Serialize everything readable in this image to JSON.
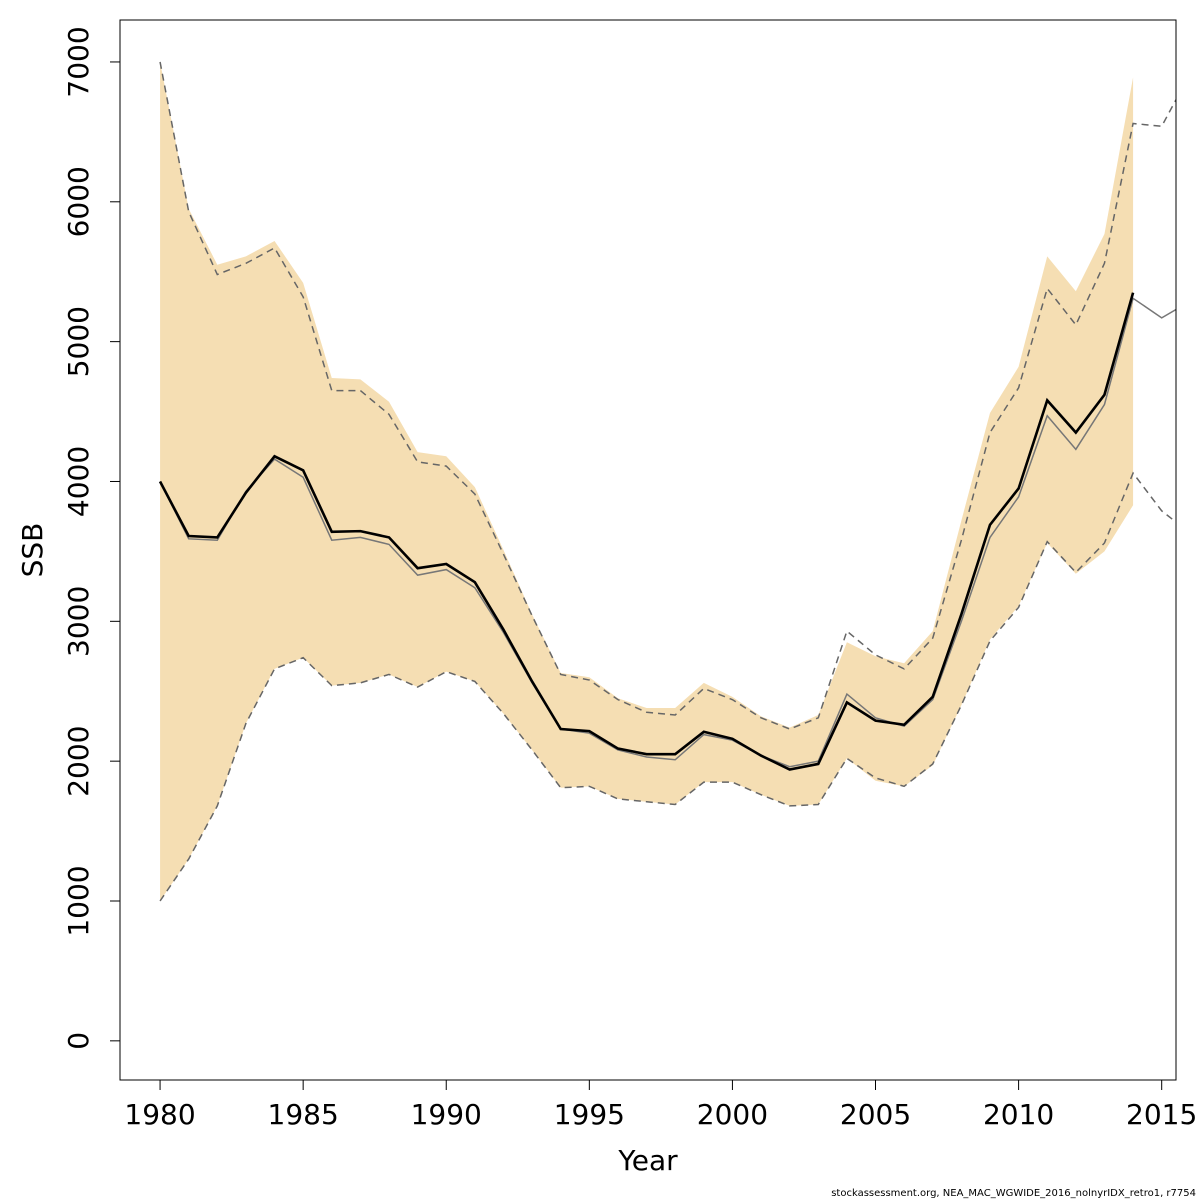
{
  "chart_data": {
    "type": "line",
    "xlabel": "Year",
    "ylabel": "SSB",
    "xlim": [
      1978.6,
      2015.5
    ],
    "ylim": [
      -280,
      7300
    ],
    "xticks": [
      1980,
      1985,
      1990,
      1995,
      2000,
      2005,
      2010,
      2015
    ],
    "xtick_labels": [
      "1980",
      "1985",
      "1990",
      "1995",
      "2000",
      "2005",
      "2010",
      "2015"
    ],
    "yticks": [
      0,
      1000,
      2000,
      3000,
      4000,
      5000,
      6000,
      7000
    ],
    "ytick_labels": [
      "0",
      "1000",
      "2000",
      "3000",
      "4000",
      "5000",
      "6000",
      "7000"
    ],
    "grid": false,
    "legend": "none",
    "band": {
      "color": "#f5deb3",
      "x": [
        1980,
        1981,
        1982,
        1983,
        1984,
        1985,
        1986,
        1987,
        1988,
        1989,
        1990,
        1991,
        1992,
        1993,
        1994,
        1995,
        1996,
        1997,
        1998,
        1999,
        2000,
        2001,
        2002,
        2003,
        2004,
        2005,
        2006,
        2007,
        2008,
        2009,
        2010,
        2011,
        2012,
        2013,
        2014
      ],
      "lower": [
        1000,
        1300,
        1680,
        2270,
        2660,
        2740,
        2540,
        2560,
        2620,
        2530,
        2640,
        2570,
        2340,
        2080,
        1810,
        1820,
        1730,
        1710,
        1690,
        1850,
        1850,
        1760,
        1680,
        1690,
        2020,
        1860,
        1820,
        1970,
        2400,
        2870,
        3110,
        3560,
        3340,
        3500,
        3830
      ],
      "upper": [
        7000,
        5950,
        5550,
        5610,
        5720,
        5420,
        4740,
        4730,
        4570,
        4210,
        4180,
        3960,
        3510,
        3050,
        2630,
        2600,
        2450,
        2380,
        2380,
        2560,
        2460,
        2320,
        2240,
        2330,
        2850,
        2750,
        2700,
        2930,
        3720,
        4490,
        4820,
        5610,
        5360,
        5770,
        6890
      ]
    },
    "series": [
      {
        "color": "#000000",
        "style": "solid",
        "x": [
          1980,
          1981,
          1982,
          1983,
          1984,
          1985,
          1986,
          1987,
          1988,
          1989,
          1990,
          1991,
          1992,
          1993,
          1994,
          1995,
          1996,
          1997,
          1998,
          1999,
          2000,
          2001,
          2002,
          2003,
          2004,
          2005,
          2006,
          2007,
          2008,
          2009,
          2010,
          2011,
          2012,
          2013,
          2014
        ],
        "values": [
          4000,
          3610,
          3600,
          3920,
          4180,
          4080,
          3640,
          3645,
          3600,
          3380,
          3410,
          3280,
          2940,
          2570,
          2230,
          2215,
          2090,
          2050,
          2050,
          2210,
          2160,
          2040,
          1940,
          1980,
          2420,
          2290,
          2260,
          2460,
          3050,
          3690,
          3950,
          4580,
          4350,
          4620,
          5350
        ]
      },
      {
        "color": "#777777",
        "style": "solid",
        "x": [
          1980,
          1981,
          1982,
          1983,
          1984,
          1985,
          1986,
          1987,
          1988,
          1989,
          1990,
          1991,
          1992,
          1993,
          1994,
          1995,
          1996,
          1997,
          1998,
          1999,
          2000,
          2001,
          2002,
          2003,
          2004,
          2005,
          2006,
          2007,
          2008,
          2009,
          2010,
          2011,
          2012,
          2013,
          2014,
          2015,
          2015.5
        ],
        "values": [
          4000,
          3590,
          3580,
          3930,
          4160,
          4030,
          3580,
          3600,
          3550,
          3330,
          3370,
          3240,
          2920,
          2560,
          2230,
          2200,
          2080,
          2030,
          2010,
          2190,
          2150,
          2040,
          1960,
          2000,
          2480,
          2310,
          2250,
          2440,
          3000,
          3600,
          3890,
          4470,
          4230,
          4550,
          5310,
          5170,
          5230
        ]
      },
      {
        "color": "#666666",
        "style": "dashed",
        "x": [
          1980,
          1981,
          1982,
          1983,
          1984,
          1985,
          1986,
          1987,
          1988,
          1989,
          1990,
          1991,
          1992,
          1993,
          1994,
          1995,
          1996,
          1997,
          1998,
          1999,
          2000,
          2001,
          2002,
          2003,
          2004,
          2005,
          2006,
          2007,
          2008,
          2009,
          2010,
          2011,
          2012,
          2013,
          2014,
          2015,
          2015.5
        ],
        "values": [
          1000,
          1300,
          1680,
          2270,
          2660,
          2740,
          2540,
          2560,
          2620,
          2530,
          2640,
          2570,
          2340,
          2080,
          1810,
          1820,
          1730,
          1710,
          1690,
          1850,
          1850,
          1760,
          1680,
          1690,
          2020,
          1880,
          1820,
          1980,
          2400,
          2860,
          3100,
          3570,
          3350,
          3560,
          4060,
          3790,
          3710
        ]
      },
      {
        "color": "#666666",
        "style": "dashed",
        "x": [
          1980,
          1981,
          1982,
          1983,
          1984,
          1985,
          1986,
          1987,
          1988,
          1989,
          1990,
          1991,
          1992,
          1993,
          1994,
          1995,
          1996,
          1997,
          1998,
          1999,
          2000,
          2001,
          2002,
          2003,
          2004,
          2005,
          2006,
          2007,
          2008,
          2009,
          2010,
          2011,
          2012,
          2013,
          2014,
          2015,
          2015.5
        ],
        "values": [
          7000,
          5930,
          5480,
          5560,
          5670,
          5320,
          4650,
          4650,
          4480,
          4140,
          4110,
          3910,
          3480,
          3040,
          2620,
          2580,
          2440,
          2350,
          2330,
          2520,
          2440,
          2310,
          2230,
          2310,
          2930,
          2760,
          2660,
          2880,
          3580,
          4350,
          4670,
          5380,
          5120,
          5560,
          6560,
          6540,
          6730
        ]
      }
    ]
  },
  "footer": "stockassessment.org, NEA_MAC_WGWIDE_2016_nolnyrIDX_retro1, r7754"
}
